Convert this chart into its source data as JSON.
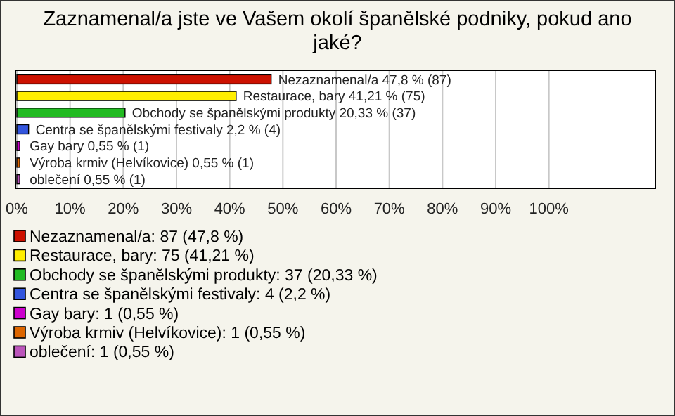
{
  "chart_data": {
    "type": "bar",
    "orientation": "horizontal",
    "title": "Zaznamenal/a jste ve Vašem okolí španělské podniky, pokud ano jaké?",
    "categories": [
      "Nezaznamenal/a",
      "Restaurace, bary",
      "Obchody se španělskými produkty",
      "Centra se španělskými festivaly",
      "Gay bary",
      "Výroba krmiv (Helvíkovice)",
      "oblečení"
    ],
    "values": [
      47.8,
      41.21,
      20.33,
      2.2,
      0.55,
      0.55,
      0.55
    ],
    "value_labels": [
      "47,8 % (87)",
      "41,21 % (75)",
      "20,33 % (37)",
      "2,2 % (4)",
      "0,55 % (1)",
      "0,55 % (1)",
      "0,55 % (1)"
    ],
    "colors": [
      "#cc1100",
      "#ffee00",
      "#22bb22",
      "#3355dd",
      "#cc00cc",
      "#dd6600",
      "#bb55bb"
    ],
    "xlim": [
      0,
      120
    ],
    "xticks": [
      {
        "value": 0,
        "label": "0%"
      },
      {
        "value": 10,
        "label": "10%"
      },
      {
        "value": 20,
        "label": "20%"
      },
      {
        "value": 30,
        "label": "30%"
      },
      {
        "value": 40,
        "label": "40%"
      },
      {
        "value": 50,
        "label": "50%"
      },
      {
        "value": 60,
        "label": "60%"
      },
      {
        "value": 70,
        "label": "70%"
      },
      {
        "value": 80,
        "label": "80%"
      },
      {
        "value": 90,
        "label": "90%"
      },
      {
        "value": 100,
        "label": "100%"
      }
    ],
    "grid": "x",
    "annotations": [
      "Nezaznamenal/a: 87 (47,8 %)",
      "Restaurace, bary: 75 (41,21 %)",
      "Obchody se španělskými produkty: 37 (20,33 %)",
      "Centra se španělskými festivaly: 4 (2,2 %)",
      "Gay bary: 1 (0,55 %)",
      "Výroba krmiv (Helvíkovice): 1 (0,55 %)",
      "oblečení: 1 (0,55 %)"
    ]
  }
}
